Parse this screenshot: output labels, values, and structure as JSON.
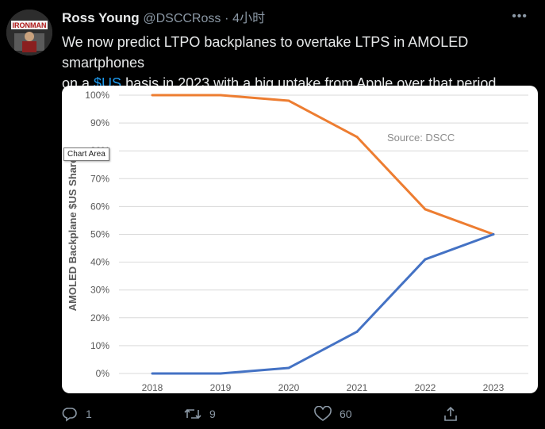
{
  "tweet": {
    "author_name": "Ross Young",
    "handle": "@DSCCRoss",
    "separator": "·",
    "time": "4小时",
    "text_line1": "We now predict LTPO backplanes to overtake LTPS in AMOLED smartphones",
    "text_line2_prefix": "on a ",
    "text_link": "$US",
    "text_line2_suffix": " basis in 2023 with a big uptake from Apple over that period...",
    "more_icon": "more-icon",
    "avatar_text": "IRONMAN"
  },
  "chart_tooltip": "Chart Area",
  "chart_data": {
    "type": "line",
    "x": [
      "2018",
      "2019",
      "2020",
      "2021",
      "2022",
      "2023"
    ],
    "series": [
      {
        "values": [
          100,
          100,
          98,
          85,
          59,
          50
        ],
        "color": "#ed7d31"
      },
      {
        "values": [
          0,
          0,
          2,
          15,
          41,
          50
        ],
        "color": "#4472c4"
      }
    ],
    "ylabel": "AMOLED Backplane $US Share",
    "yticks": [
      "0%",
      "10%",
      "20%",
      "30%",
      "40%",
      "50%",
      "60%",
      "70%",
      "80%",
      "90%",
      "100%"
    ],
    "ylim": [
      0,
      100
    ],
    "annotation": "Source: DSCC",
    "grid": true,
    "legend": "none"
  },
  "actions": {
    "reply_count": "1",
    "retweet_count": "9",
    "like_count": "60",
    "reply_icon": "reply-icon",
    "retweet_icon": "retweet-icon",
    "like_icon": "like-icon",
    "share_icon": "share-icon"
  }
}
